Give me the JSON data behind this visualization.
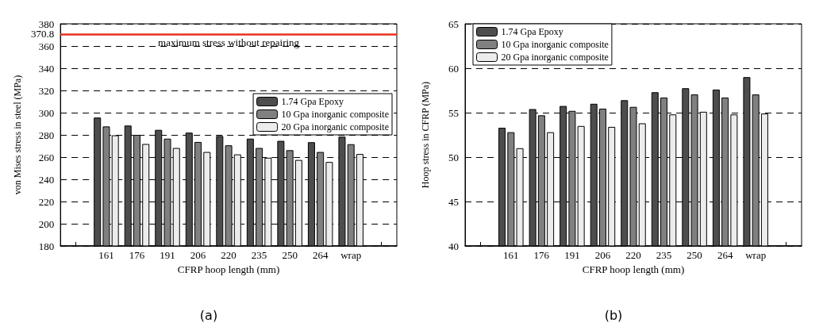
{
  "chart_data": [
    {
      "type": "bar",
      "xlabel": "CFRP hoop length (mm)",
      "ylabel": "von Mises stress in steel (MPa)",
      "categories": [
        null,
        "161",
        "176",
        "191",
        "206",
        "220",
        "235",
        "250",
        "264",
        "wrap",
        null
      ],
      "series": [
        {
          "name": "1.74 Gpa Epoxy",
          "color": "#4d4d4d",
          "values": [
            null,
            295.6,
            288.4,
            284.5,
            282,
            279,
            276.6,
            274.6,
            273.4,
            278.4,
            null
          ]
        },
        {
          "name": "10 Gpa inorganic composite",
          "color": "#808080",
          "values": [
            null,
            287.6,
            280,
            276.6,
            273.6,
            270.6,
            268.2,
            266.2,
            264.6,
            271.6,
            null
          ]
        },
        {
          "name": "20 Gpa inorganic composite",
          "color": "#ececec",
          "values": [
            null,
            279.6,
            271.8,
            268.2,
            264.6,
            262.4,
            259.4,
            257.4,
            255.6,
            262.8,
            null
          ]
        }
      ],
      "ylim": [
        180,
        380
      ],
      "yticks": [
        180,
        200,
        220,
        240,
        260,
        280,
        300,
        320,
        340,
        360,
        370.8,
        380
      ],
      "grid": "y",
      "legend": "top right",
      "ref_lines": [
        {
          "axis": "y",
          "value": 370.8,
          "label": "maximum stress without repairing",
          "color": "#e8321e",
          "line_style": "solid"
        }
      ],
      "annotations": [
        "(a)"
      ]
    },
    {
      "type": "bar",
      "xlabel": "CFRP hoop length (mm)",
      "ylabel": "Hoop stress in CFRP (MPa)",
      "categories": [
        null,
        "161",
        "176",
        "191",
        "206",
        "220",
        "235",
        "250",
        "264",
        "wrap",
        null
      ],
      "series": [
        {
          "name": "1.74 Gpa Epoxy",
          "color": "#4d4d4d",
          "values": [
            null,
            53.3,
            55.4,
            55.75,
            56,
            56.4,
            57.3,
            57.75,
            57.6,
            59,
            null
          ]
        },
        {
          "name": "10 Gpa inorganic composite",
          "color": "#808080",
          "values": [
            null,
            52.8,
            54.7,
            55.2,
            55.45,
            55.65,
            56.7,
            57.05,
            56.7,
            57.05,
            null
          ]
        },
        {
          "name": "20 Gpa inorganic composite",
          "color": "#ececec",
          "values": [
            null,
            51,
            52.8,
            53.5,
            53.4,
            53.8,
            54.8,
            55.1,
            54.8,
            54.9,
            null
          ]
        }
      ],
      "ylim": [
        40,
        65
      ],
      "yticks": [
        40,
        45,
        50,
        55,
        60,
        65
      ],
      "grid": "y",
      "legend": "top left",
      "annotations": [
        "(b)"
      ]
    }
  ]
}
